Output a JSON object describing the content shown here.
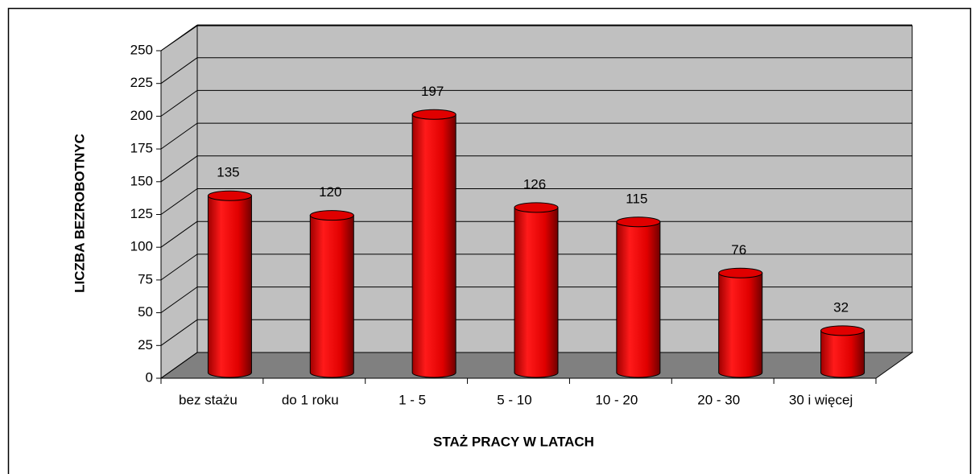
{
  "chart_data": {
    "type": "bar",
    "categories": [
      "bez stażu",
      "do 1 roku",
      "1 - 5",
      "5 - 10",
      "10 - 20",
      "20 - 30",
      "30 i więcej"
    ],
    "values": [
      135,
      120,
      197,
      126,
      115,
      76,
      32
    ],
    "color": "#ff0000",
    "ylim": [
      0,
      250
    ],
    "yticks": [
      0,
      25,
      50,
      75,
      100,
      125,
      150,
      175,
      200,
      225,
      250
    ],
    "grid": true,
    "y_label": "LICZBA BEZROBOTNYC",
    "x_label": "STAŻ PRACY W LATACH"
  }
}
